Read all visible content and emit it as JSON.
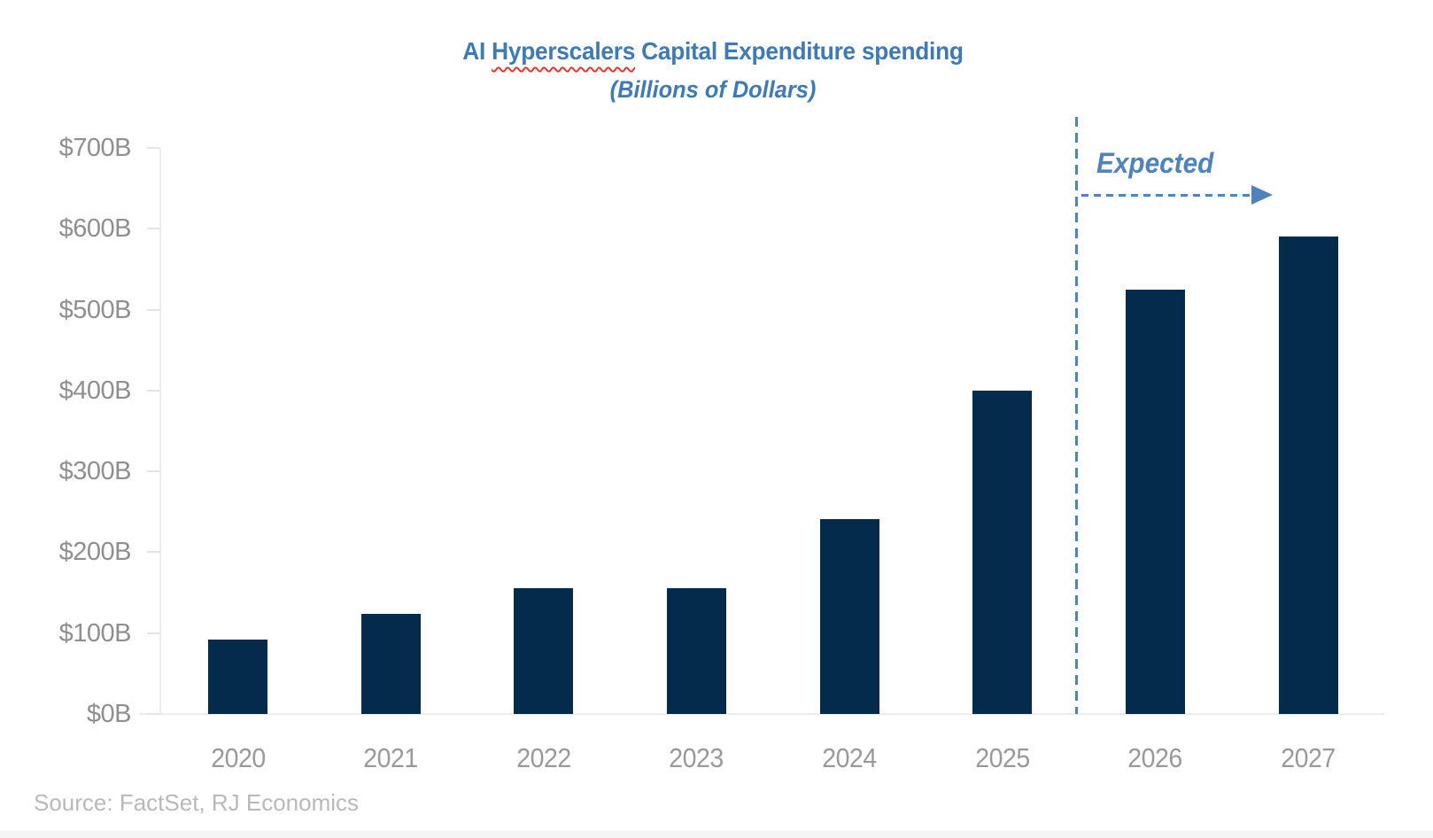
{
  "page": {
    "background": "#FFFFFF"
  },
  "title": {
    "prefix": "AI ",
    "highlighted_word": "Hyperscalers",
    "suffix": " Capital Expenditure spending",
    "subtitle": "(Billions of Dollars)"
  },
  "annotation": {
    "label": "Expected"
  },
  "source_note": "Source: FactSet, RJ Economics",
  "colors": {
    "bar": "#042B4C",
    "title_text": "#3D7AB8",
    "annotation_blue": "#4E83BB",
    "axis_label_gray": "#8F8F8F",
    "year_label_gray": "#999999",
    "source_text_gray": "#B9B9B9",
    "axis_line_gray": "#ECECEC",
    "spellcheck_underline_red": "#E5352B"
  },
  "chart_data": {
    "type": "bar",
    "title": "AI Hyperscalers Capital Expenditure spending",
    "subtitle": "(Billions of Dollars)",
    "categories": [
      "2020",
      "2021",
      "2022",
      "2023",
      "2024",
      "2025",
      "2026",
      "2027"
    ],
    "values": [
      92,
      124,
      155,
      156,
      241,
      400,
      525,
      590
    ],
    "unit": "USD billions",
    "xlabel": "",
    "ylabel": "",
    "ylim": [
      0,
      700
    ],
    "ytick_step": 100,
    "ytick_labels": [
      "$0B",
      "$100B",
      "$200B",
      "$300B",
      "$400B",
      "$500B",
      "$600B",
      "$700B"
    ],
    "gridlines": "none",
    "legend": "none",
    "bar_color": "#042B4C",
    "expected_divider_after": "2025",
    "expected_categories": [
      "2026",
      "2027"
    ],
    "annotation_text": "Expected"
  }
}
